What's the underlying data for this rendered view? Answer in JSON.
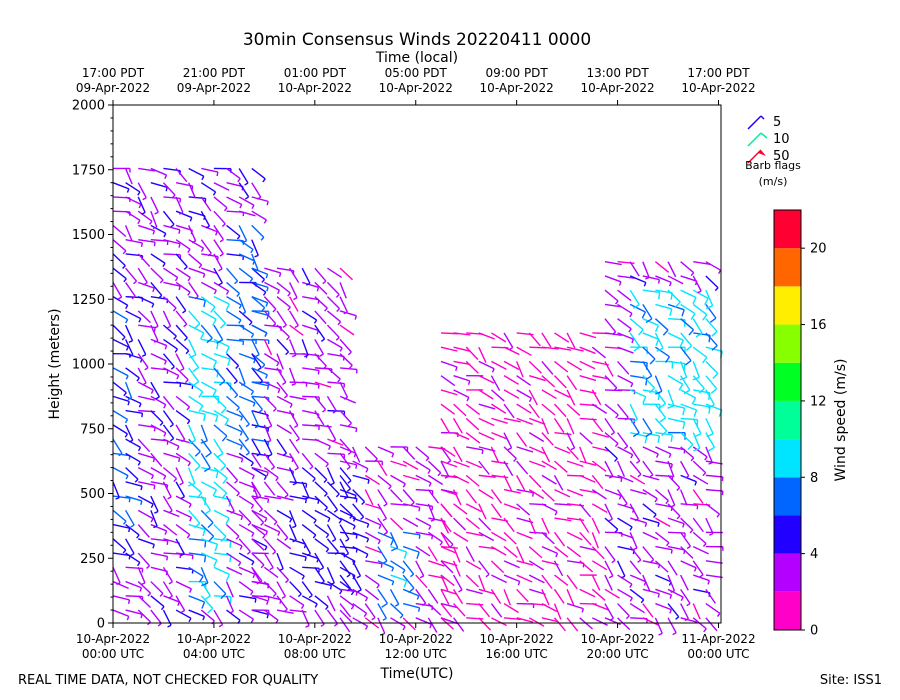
{
  "chart_data": {
    "type": "wind-barb",
    "title": "30min Consensus Winds 20220411 0000",
    "top_axis_label": "Time (local)",
    "xlabel": "Time(UTC)",
    "ylabel": "Height (meters)",
    "colorbar_label": "Wind speed (m/s)",
    "xlim_hours": [
      0,
      24.1
    ],
    "ylim": [
      0,
      2000
    ],
    "y_ticks": [
      0,
      250,
      500,
      750,
      1000,
      1250,
      1500,
      1750,
      2000
    ],
    "bottom_ticks": [
      {
        "hour": 0,
        "line1": "10-Apr-2022",
        "line2": "00:00 UTC"
      },
      {
        "hour": 4,
        "line1": "10-Apr-2022",
        "line2": "04:00 UTC"
      },
      {
        "hour": 8,
        "line1": "10-Apr-2022",
        "line2": "08:00 UTC"
      },
      {
        "hour": 12,
        "line1": "10-Apr-2022",
        "line2": "12:00 UTC"
      },
      {
        "hour": 16,
        "line1": "10-Apr-2022",
        "line2": "16:00 UTC"
      },
      {
        "hour": 20,
        "line1": "10-Apr-2022",
        "line2": "20:00 UTC"
      },
      {
        "hour": 24,
        "line1": "11-Apr-2022",
        "line2": "00:00 UTC"
      }
    ],
    "top_ticks": [
      {
        "hour": 0,
        "line1": "17:00 PDT",
        "line2": "09-Apr-2022"
      },
      {
        "hour": 4,
        "line1": "21:00 PDT",
        "line2": "09-Apr-2022"
      },
      {
        "hour": 8,
        "line1": "01:00 PDT",
        "line2": "10-Apr-2022"
      },
      {
        "hour": 12,
        "line1": "05:00 PDT",
        "line2": "10-Apr-2022"
      },
      {
        "hour": 16,
        "line1": "09:00 PDT",
        "line2": "10-Apr-2022"
      },
      {
        "hour": 20,
        "line1": "13:00 PDT",
        "line2": "10-Apr-2022"
      },
      {
        "hour": 24,
        "line1": "17:00 PDT",
        "line2": "10-Apr-2022"
      }
    ],
    "legend": {
      "items": [
        {
          "label": "5",
          "color": "#2200ff"
        },
        {
          "label": "10",
          "color": "#00ee99"
        },
        {
          "label": "50",
          "color": "#ff0033"
        }
      ],
      "title_line1": "Barb flags",
      "title_line2": "(m/s)",
      "placement": "top-right"
    },
    "colorbar": {
      "vmin": 0,
      "vmax": 22,
      "ticks": [
        0,
        4,
        8,
        12,
        16,
        20
      ],
      "bins": [
        {
          "from": 0,
          "to": 2,
          "color": "#ff00c8"
        },
        {
          "from": 2,
          "to": 4,
          "color": "#b400ff"
        },
        {
          "from": 4,
          "to": 6,
          "color": "#2200ff"
        },
        {
          "from": 6,
          "to": 8,
          "color": "#0066ff"
        },
        {
          "from": 8,
          "to": 10,
          "color": "#00e5ff"
        },
        {
          "from": 10,
          "to": 12,
          "color": "#00ff99"
        },
        {
          "from": 12,
          "to": 14,
          "color": "#00ff22"
        },
        {
          "from": 14,
          "to": 16,
          "color": "#88ff00"
        },
        {
          "from": 16,
          "to": 18,
          "color": "#ffee00"
        },
        {
          "from": 18,
          "to": 20,
          "color": "#ff6600"
        },
        {
          "from": 20,
          "to": 22,
          "color": "#ff0033"
        }
      ]
    },
    "barbs": {
      "time_step_hours": 0.5,
      "height_step_m": 55,
      "blocks": [
        {
          "t0": 0.0,
          "t1": 5.5,
          "h0": 50,
          "h1": 1780,
          "base_speed": 3.5
        },
        {
          "t0": 5.5,
          "t1": 9.0,
          "h0": 50,
          "h1": 1400,
          "base_speed": 3.0
        },
        {
          "t0": 9.0,
          "t1": 13.0,
          "h0": 20,
          "h1": 680,
          "base_speed": 2.5
        },
        {
          "t0": 13.0,
          "t1": 19.0,
          "h0": 20,
          "h1": 1150,
          "base_speed": 1.5
        },
        {
          "t0": 19.5,
          "t1": 23.5,
          "h0": 20,
          "h1": 1420,
          "base_speed": 3.0
        }
      ],
      "jets": [
        {
          "t0": 0.0,
          "t1": 0.5,
          "h0": 250,
          "h1": 1280,
          "speed": 5.5
        },
        {
          "t0": 3.0,
          "t1": 4.2,
          "h0": 100,
          "h1": 1300,
          "speed": 8.5
        },
        {
          "t0": 4.5,
          "t1": 5.5,
          "h0": 700,
          "h1": 1550,
          "speed": 6.5
        },
        {
          "t0": 7.0,
          "t1": 9.5,
          "h0": 150,
          "h1": 600,
          "speed": 5.0
        },
        {
          "t0": 10.5,
          "t1": 11.5,
          "h0": 30,
          "h1": 350,
          "speed": 7.5
        },
        {
          "t0": 20.5,
          "t1": 23.5,
          "h0": 700,
          "h1": 1300,
          "speed": 8.5
        }
      ]
    }
  },
  "footer": {
    "left": "REAL TIME DATA, NOT CHECKED FOR QUALITY",
    "right": "Site: ISS1"
  }
}
